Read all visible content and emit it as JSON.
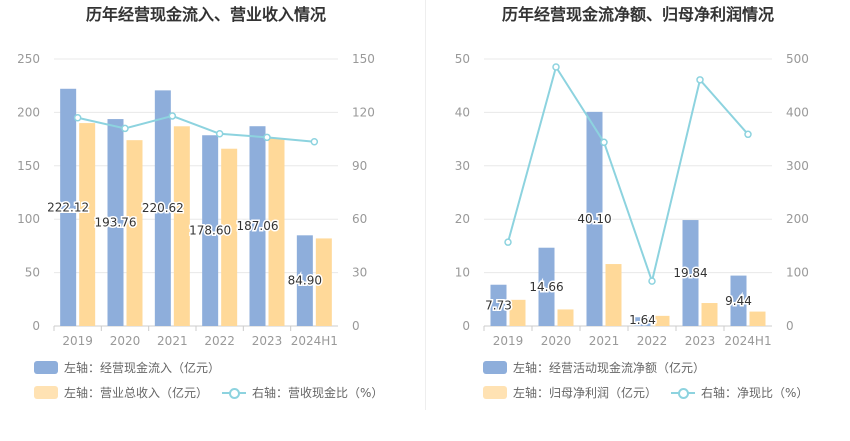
{
  "colors": {
    "bar1": "#8eaedb",
    "bar2": "#ffd999",
    "line": "#8dd3df",
    "axis": "#999999",
    "grid": "#e8e8e8"
  },
  "chart_data": [
    {
      "type": "bar",
      "title": "历年经营现金流入、营业收入情况",
      "categories": [
        "2019",
        "2020",
        "2021",
        "2022",
        "2023",
        "2024H1"
      ],
      "y_left_ticks": [
        "250",
        "200",
        "150",
        "100",
        "50",
        "0"
      ],
      "y_right_ticks": [
        "150",
        "120",
        "90",
        "60",
        "30",
        "0"
      ],
      "ylim_left": [
        0,
        250
      ],
      "ylim_right": [
        0,
        150
      ],
      "series": [
        {
          "name": "左轴：经营现金流入（亿元）",
          "axis": "left",
          "kind": "bar",
          "values": [
            222.12,
            193.76,
            220.62,
            178.6,
            187.06,
            84.9
          ],
          "labels": [
            "222.12",
            "193.76",
            "220.62",
            "178.60",
            "187.06",
            "84.90"
          ]
        },
        {
          "name": "左轴：营业总收入（亿元）",
          "axis": "left",
          "kind": "bar",
          "values": [
            190,
            174,
            187,
            166,
            176,
            82
          ]
        },
        {
          "name": "右轴：营收现金比（%）",
          "axis": "right",
          "kind": "line",
          "values": [
            117,
            111,
            118,
            108,
            106,
            103.5
          ]
        }
      ]
    },
    {
      "type": "bar",
      "title": "历年经营现金流净额、归母净利润情况",
      "categories": [
        "2019",
        "2020",
        "2021",
        "2022",
        "2023",
        "2024H1"
      ],
      "y_left_ticks": [
        "50",
        "40",
        "30",
        "20",
        "10",
        "0"
      ],
      "y_right_ticks": [
        "500",
        "400",
        "300",
        "200",
        "100",
        "0"
      ],
      "ylim_left": [
        0,
        50
      ],
      "ylim_right": [
        0,
        500
      ],
      "series": [
        {
          "name": "左轴：经营活动现金流净额（亿元）",
          "axis": "left",
          "kind": "bar",
          "values": [
            7.73,
            14.66,
            40.1,
            1.64,
            19.84,
            9.44
          ],
          "labels": [
            "7.73",
            "14.66",
            "40.10",
            "1.64",
            "19.84",
            "9.44"
          ]
        },
        {
          "name": "左轴：归母净利润（亿元）",
          "axis": "left",
          "kind": "bar",
          "values": [
            4.9,
            3.1,
            11.6,
            1.9,
            4.3,
            2.7
          ]
        },
        {
          "name": "右轴：净现比（%）",
          "axis": "right",
          "kind": "line",
          "values": [
            157,
            485,
            344,
            84,
            461,
            359
          ]
        }
      ]
    }
  ]
}
